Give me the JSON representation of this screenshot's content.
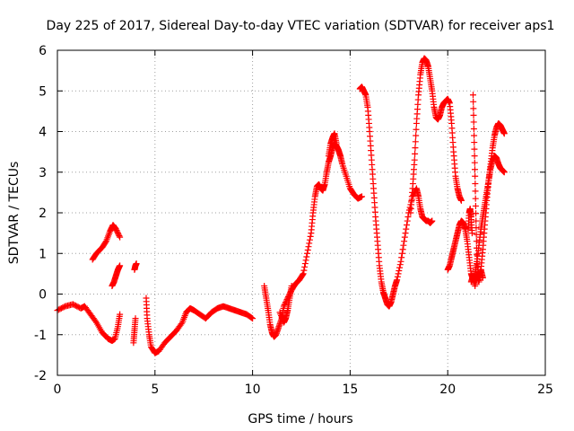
{
  "chart_data": {
    "type": "scatter",
    "title": "Day 225 of 2017, Sidereal Day-to-day VTEC variation (SDTVAR) for receiver aps1",
    "xlabel": "GPS time / hours",
    "ylabel": "SDTVAR / TECUs",
    "xlim": [
      0,
      25
    ],
    "ylim": [
      -2,
      6
    ],
    "x_ticks": [
      "0",
      "5",
      "10",
      "15",
      "20",
      "25"
    ],
    "y_ticks": [
      "-2",
      "-1",
      "0",
      "1",
      "2",
      "3",
      "4",
      "5",
      "6"
    ],
    "grid": true,
    "marker": "+",
    "color": "#ff0000",
    "series": [
      {
        "x": [
          0,
          0.4,
          0.8,
          1.2,
          1.4,
          1.7,
          2.0,
          2.3,
          2.6,
          2.8,
          2.95,
          3.1,
          3.2
        ],
        "y": [
          -0.4,
          -0.3,
          -0.25,
          -0.35,
          -0.3,
          -0.5,
          -0.7,
          -0.95,
          -1.1,
          -1.15,
          -1.1,
          -0.8,
          -0.5
        ]
      },
      {
        "x": [
          1.8,
          2.0,
          2.3,
          2.5,
          2.7,
          2.85,
          3.0,
          3.2
        ],
        "y": [
          0.85,
          1.0,
          1.15,
          1.3,
          1.55,
          1.7,
          1.6,
          1.4
        ]
      },
      {
        "x": [
          2.8,
          2.9,
          3.0,
          3.1,
          3.2
        ],
        "y": [
          0.2,
          0.3,
          0.45,
          0.6,
          0.7
        ]
      },
      {
        "x": [
          3.95,
          4.0,
          4.05
        ],
        "y": [
          0.6,
          0.7,
          0.75
        ]
      },
      {
        "x": [
          3.9,
          3.95,
          4.0
        ],
        "y": [
          -1.2,
          -0.9,
          -0.6
        ]
      },
      {
        "x": [
          4.55,
          4.6,
          4.7,
          4.8,
          5.0,
          5.2,
          5.5,
          5.8,
          6.1,
          6.4,
          6.6,
          6.8,
          7.0,
          7.3,
          7.6,
          7.9,
          8.2,
          8.5,
          8.8,
          9.1,
          9.4,
          9.7,
          10.0
        ],
        "y": [
          -0.1,
          -0.6,
          -1.0,
          -1.3,
          -1.45,
          -1.4,
          -1.2,
          -1.05,
          -0.9,
          -0.7,
          -0.45,
          -0.35,
          -0.4,
          -0.5,
          -0.6,
          -0.45,
          -0.35,
          -0.3,
          -0.35,
          -0.4,
          -0.45,
          -0.5,
          -0.6
        ]
      },
      {
        "x": [
          10.6,
          10.7,
          10.8,
          10.9,
          11.0,
          11.1,
          11.2,
          11.35,
          11.5,
          11.6,
          11.8,
          12.0,
          12.2,
          12.4,
          12.6,
          12.8,
          13.0,
          13.1,
          13.2,
          13.3,
          13.4,
          13.5,
          13.6,
          13.7,
          13.8,
          13.9,
          14.0,
          14.1,
          14.2,
          14.3,
          14.4,
          14.5,
          14.6,
          14.8,
          15.0,
          15.2,
          15.4,
          15.6
        ],
        "y": [
          0.2,
          -0.1,
          -0.4,
          -0.75,
          -0.95,
          -1.05,
          -1.0,
          -0.8,
          -0.6,
          -0.3,
          -0.1,
          0.1,
          0.25,
          0.35,
          0.5,
          1.0,
          1.5,
          2.0,
          2.4,
          2.65,
          2.7,
          2.6,
          2.55,
          2.7,
          3.0,
          3.25,
          3.4,
          3.6,
          3.7,
          3.65,
          3.55,
          3.4,
          3.2,
          2.9,
          2.6,
          2.45,
          2.35,
          2.4
        ]
      },
      {
        "x": [
          11.4,
          11.6,
          11.7,
          11.8,
          11.9,
          12.0
        ],
        "y": [
          -0.45,
          -0.7,
          -0.6,
          -0.4,
          -0.1,
          0.2
        ]
      },
      {
        "x": [
          13.9,
          14.0,
          14.1,
          14.2,
          14.3
        ],
        "y": [
          3.4,
          3.7,
          3.85,
          3.95,
          3.7
        ]
      },
      {
        "x": [
          15.5,
          15.6,
          15.7,
          15.8,
          15.9,
          16.0,
          16.1,
          16.2,
          16.3,
          16.4,
          16.5,
          16.6,
          16.7,
          16.8,
          16.9,
          17.0,
          17.1,
          17.2,
          17.3,
          17.4,
          17.6,
          17.8,
          18.0,
          18.2,
          18.4,
          18.5,
          18.6,
          18.7,
          18.8,
          18.9,
          19.0,
          19.1,
          19.2
        ],
        "y": [
          5.05,
          5.1,
          5.0,
          4.9,
          4.6,
          4.0,
          3.3,
          2.6,
          1.9,
          1.3,
          0.7,
          0.3,
          0.05,
          -0.1,
          -0.25,
          -0.3,
          -0.2,
          0.0,
          0.2,
          0.35,
          0.8,
          1.4,
          2.0,
          2.4,
          2.6,
          2.4,
          2.1,
          1.9,
          1.85,
          1.8,
          1.8,
          1.75,
          1.8
        ]
      },
      {
        "x": [
          18.1,
          18.2,
          18.3,
          18.4,
          18.5,
          18.6,
          18.7,
          18.8,
          18.9,
          19.0,
          19.1,
          19.2,
          19.3,
          19.4,
          19.5,
          19.6,
          19.7,
          19.8,
          19.9,
          20.0,
          20.1,
          20.2,
          20.3,
          20.4,
          20.5,
          20.6,
          20.7
        ],
        "y": [
          2.0,
          2.6,
          3.3,
          4.2,
          4.9,
          5.4,
          5.7,
          5.8,
          5.75,
          5.6,
          5.3,
          5.0,
          4.6,
          4.35,
          4.3,
          4.4,
          4.6,
          4.7,
          4.75,
          4.8,
          4.7,
          4.2,
          3.5,
          2.9,
          2.6,
          2.4,
          2.3
        ]
      },
      {
        "x": [
          20.0,
          20.1,
          20.2,
          20.3,
          20.4,
          20.5,
          20.6,
          20.7,
          20.8,
          20.9,
          21.0,
          21.1,
          21.2,
          21.3,
          21.4,
          21.5,
          21.6,
          21.7,
          21.8,
          21.9,
          22.0,
          22.1,
          22.2,
          22.3,
          22.4,
          22.5,
          22.6,
          22.7,
          22.8,
          22.9
        ],
        "y": [
          0.6,
          0.7,
          0.9,
          1.1,
          1.3,
          1.5,
          1.7,
          1.8,
          1.75,
          1.6,
          1.3,
          0.9,
          0.5,
          0.35,
          0.5,
          0.8,
          1.2,
          1.6,
          1.9,
          2.2,
          2.5,
          2.8,
          3.1,
          3.3,
          3.4,
          3.35,
          3.2,
          3.1,
          3.05,
          3.0
        ]
      },
      {
        "x": [
          21.3,
          21.35,
          21.4,
          21.45,
          21.5,
          21.6,
          21.7,
          21.8,
          21.9,
          22.0,
          22.1,
          22.2,
          22.3,
          22.4,
          22.5,
          22.6,
          22.7,
          22.8,
          22.9
        ],
        "y": [
          4.9,
          3.9,
          2.9,
          1.8,
          0.8,
          0.4,
          0.6,
          1.1,
          1.7,
          2.3,
          2.8,
          3.2,
          3.6,
          3.9,
          4.1,
          4.2,
          4.15,
          4.05,
          3.95
        ]
      },
      {
        "x": [
          21.05,
          21.1,
          21.15,
          21.2,
          21.25
        ],
        "y": [
          1.6,
          2.0,
          2.1,
          1.9,
          1.5
        ]
      },
      {
        "x": [
          21.2,
          21.3,
          21.4,
          21.5,
          21.6,
          21.7,
          21.8
        ],
        "y": [
          0.3,
          0.45,
          0.2,
          0.5,
          0.3,
          0.6,
          0.4
        ]
      }
    ]
  }
}
